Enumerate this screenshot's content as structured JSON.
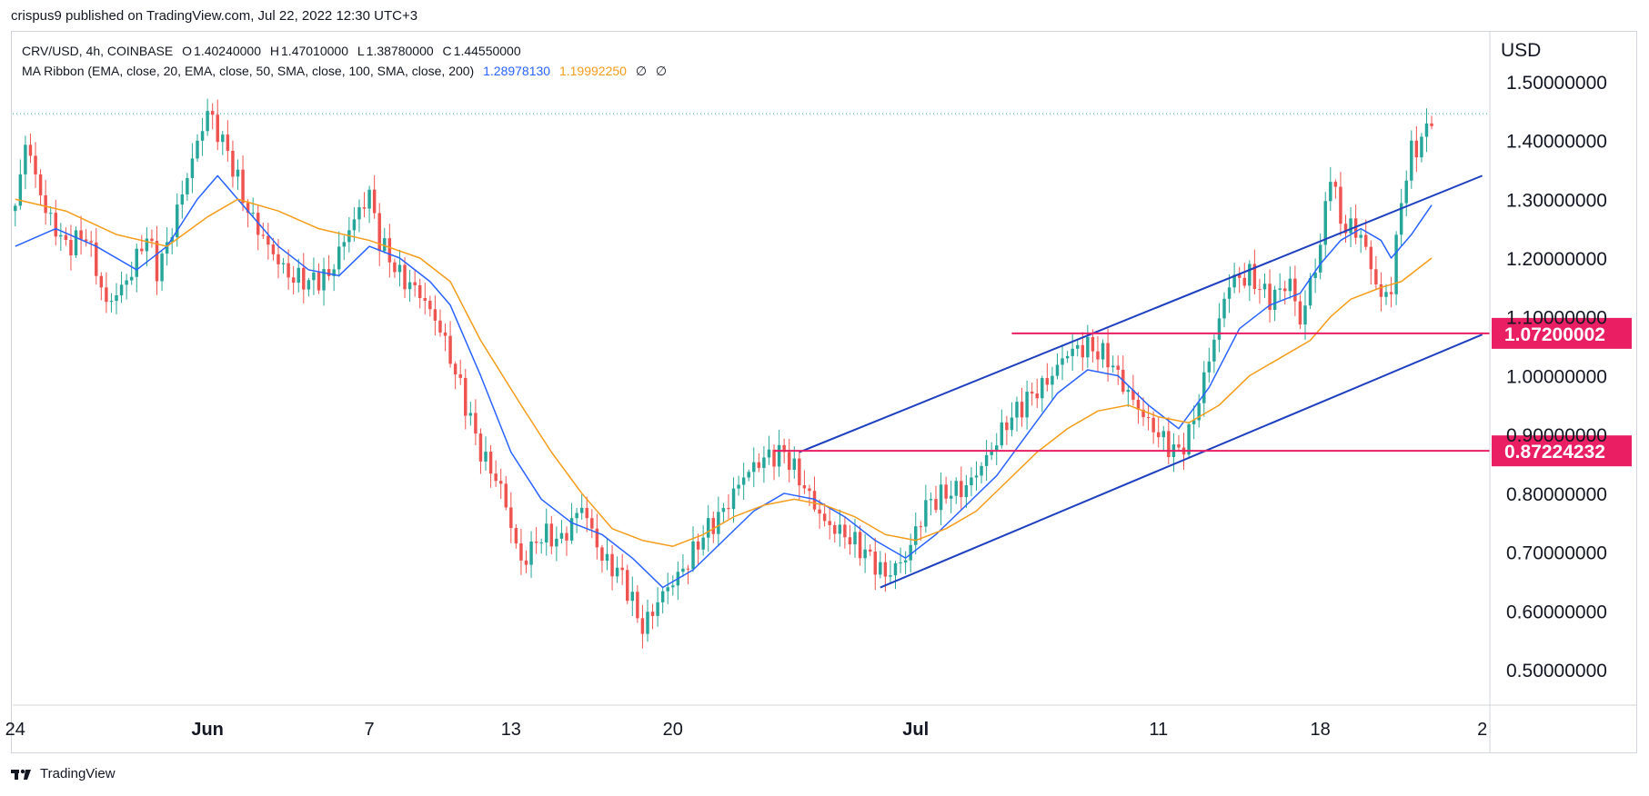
{
  "header": {
    "published_by": "crispus9 published on TradingView.com, Jul 22, 2022 12:30 UTC+3"
  },
  "legend": {
    "row1": {
      "symbol": "CRV/USD, 4h, COINBASE",
      "o_label": "O",
      "o": "1.40240000",
      "h_label": "H",
      "h": "1.47010000",
      "l_label": "L",
      "l": "1.38780000",
      "c_label": "C",
      "c": "1.44550000"
    },
    "row2": {
      "indicator": "MA Ribbon (EMA, close, 20, EMA, close, 50, SMA, close, 100, SMA, close, 200)",
      "ma1": "1.28978130",
      "ma2": "1.19992250",
      "ma3": "∅",
      "ma4": "∅"
    }
  },
  "footer": {
    "brand": "TradingView"
  },
  "chart_data": {
    "type": "candlestick",
    "currency": "USD",
    "y_ticks": [
      "1.50000000",
      "1.40000000",
      "1.30000000",
      "1.20000000",
      "1.10000000",
      "1.00000000",
      "0.90000000",
      "0.80000000",
      "0.70000000",
      "0.60000000",
      "0.50000000"
    ],
    "ylim": [
      0.44,
      1.58
    ],
    "x_ticks": [
      {
        "label": "24",
        "i": 0
      },
      {
        "label": "Jun",
        "i": 38
      },
      {
        "label": "7",
        "i": 70
      },
      {
        "label": "13",
        "i": 98
      },
      {
        "label": "20",
        "i": 130
      },
      {
        "label": "Jul",
        "i": 178
      },
      {
        "label": "11",
        "i": 226
      },
      {
        "label": "18",
        "i": 258
      },
      {
        "label": "2",
        "i": 290
      }
    ],
    "n_slots": 292,
    "candle_anchors": [
      [
        0,
        1.28
      ],
      [
        2,
        1.4
      ],
      [
        6,
        1.28
      ],
      [
        10,
        1.22
      ],
      [
        14,
        1.24
      ],
      [
        16,
        1.18
      ],
      [
        18,
        1.12
      ],
      [
        22,
        1.16
      ],
      [
        26,
        1.24
      ],
      [
        28,
        1.18
      ],
      [
        30,
        1.22
      ],
      [
        34,
        1.34
      ],
      [
        38,
        1.45
      ],
      [
        42,
        1.38
      ],
      [
        46,
        1.28
      ],
      [
        50,
        1.22
      ],
      [
        54,
        1.17
      ],
      [
        58,
        1.16
      ],
      [
        62,
        1.17
      ],
      [
        66,
        1.25
      ],
      [
        70,
        1.31
      ],
      [
        72,
        1.23
      ],
      [
        76,
        1.17
      ],
      [
        80,
        1.14
      ],
      [
        84,
        1.08
      ],
      [
        88,
        0.98
      ],
      [
        92,
        0.87
      ],
      [
        96,
        0.81
      ],
      [
        100,
        0.68
      ],
      [
        104,
        0.73
      ],
      [
        108,
        0.72
      ],
      [
        112,
        0.78
      ],
      [
        116,
        0.69
      ],
      [
        120,
        0.66
      ],
      [
        124,
        0.57
      ],
      [
        128,
        0.63
      ],
      [
        132,
        0.67
      ],
      [
        136,
        0.73
      ],
      [
        140,
        0.77
      ],
      [
        144,
        0.83
      ],
      [
        148,
        0.86
      ],
      [
        152,
        0.87
      ],
      [
        156,
        0.81
      ],
      [
        160,
        0.75
      ],
      [
        164,
        0.73
      ],
      [
        168,
        0.7
      ],
      [
        172,
        0.66
      ],
      [
        176,
        0.69
      ],
      [
        180,
        0.78
      ],
      [
        184,
        0.8
      ],
      [
        188,
        0.81
      ],
      [
        192,
        0.86
      ],
      [
        196,
        0.92
      ],
      [
        200,
        0.96
      ],
      [
        204,
        0.99
      ],
      [
        208,
        1.04
      ],
      [
        212,
        1.05
      ],
      [
        216,
        1.03
      ],
      [
        220,
        0.97
      ],
      [
        224,
        0.92
      ],
      [
        228,
        0.88
      ],
      [
        230,
        0.87
      ],
      [
        232,
        0.9
      ],
      [
        234,
        0.96
      ],
      [
        236,
        1.03
      ],
      [
        240,
        1.16
      ],
      [
        244,
        1.17
      ],
      [
        248,
        1.13
      ],
      [
        252,
        1.16
      ],
      [
        254,
        1.09
      ],
      [
        258,
        1.22
      ],
      [
        260,
        1.35
      ],
      [
        262,
        1.26
      ],
      [
        266,
        1.24
      ],
      [
        270,
        1.13
      ],
      [
        272,
        1.15
      ],
      [
        274,
        1.3
      ],
      [
        276,
        1.38
      ],
      [
        278,
        1.4
      ],
      [
        280,
        1.44
      ]
    ],
    "series": [
      {
        "name": "EMA 20",
        "color": "#2962ff",
        "anchors": [
          [
            0,
            1.22
          ],
          [
            8,
            1.25
          ],
          [
            16,
            1.22
          ],
          [
            24,
            1.18
          ],
          [
            30,
            1.22
          ],
          [
            36,
            1.3
          ],
          [
            40,
            1.34
          ],
          [
            46,
            1.28
          ],
          [
            52,
            1.22
          ],
          [
            58,
            1.18
          ],
          [
            64,
            1.17
          ],
          [
            70,
            1.22
          ],
          [
            76,
            1.2
          ],
          [
            82,
            1.16
          ],
          [
            86,
            1.12
          ],
          [
            92,
            1.0
          ],
          [
            98,
            0.87
          ],
          [
            104,
            0.79
          ],
          [
            110,
            0.75
          ],
          [
            116,
            0.73
          ],
          [
            122,
            0.69
          ],
          [
            128,
            0.64
          ],
          [
            134,
            0.67
          ],
          [
            140,
            0.72
          ],
          [
            146,
            0.77
          ],
          [
            152,
            0.8
          ],
          [
            158,
            0.79
          ],
          [
            164,
            0.76
          ],
          [
            170,
            0.72
          ],
          [
            176,
            0.69
          ],
          [
            182,
            0.73
          ],
          [
            188,
            0.78
          ],
          [
            194,
            0.83
          ],
          [
            200,
            0.9
          ],
          [
            206,
            0.97
          ],
          [
            212,
            1.01
          ],
          [
            218,
            1.0
          ],
          [
            224,
            0.95
          ],
          [
            230,
            0.91
          ],
          [
            236,
            0.98
          ],
          [
            242,
            1.08
          ],
          [
            248,
            1.12
          ],
          [
            254,
            1.14
          ],
          [
            258,
            1.19
          ],
          [
            262,
            1.23
          ],
          [
            266,
            1.25
          ],
          [
            270,
            1.23
          ],
          [
            272,
            1.2
          ],
          [
            276,
            1.24
          ],
          [
            280,
            1.29
          ]
        ]
      },
      {
        "name": "EMA 50",
        "color": "#f59c1a",
        "anchors": [
          [
            0,
            1.3
          ],
          [
            10,
            1.28
          ],
          [
            20,
            1.24
          ],
          [
            30,
            1.22
          ],
          [
            38,
            1.27
          ],
          [
            44,
            1.3
          ],
          [
            52,
            1.28
          ],
          [
            60,
            1.25
          ],
          [
            70,
            1.23
          ],
          [
            80,
            1.2
          ],
          [
            86,
            1.16
          ],
          [
            92,
            1.06
          ],
          [
            100,
            0.95
          ],
          [
            106,
            0.87
          ],
          [
            112,
            0.8
          ],
          [
            118,
            0.74
          ],
          [
            124,
            0.72
          ],
          [
            130,
            0.71
          ],
          [
            136,
            0.73
          ],
          [
            142,
            0.76
          ],
          [
            148,
            0.78
          ],
          [
            154,
            0.79
          ],
          [
            160,
            0.78
          ],
          [
            166,
            0.76
          ],
          [
            172,
            0.73
          ],
          [
            178,
            0.72
          ],
          [
            184,
            0.74
          ],
          [
            190,
            0.77
          ],
          [
            196,
            0.82
          ],
          [
            202,
            0.87
          ],
          [
            208,
            0.91
          ],
          [
            214,
            0.94
          ],
          [
            220,
            0.95
          ],
          [
            226,
            0.93
          ],
          [
            232,
            0.92
          ],
          [
            238,
            0.95
          ],
          [
            244,
            1.0
          ],
          [
            250,
            1.03
          ],
          [
            256,
            1.06
          ],
          [
            260,
            1.1
          ],
          [
            264,
            1.13
          ],
          [
            270,
            1.15
          ],
          [
            274,
            1.16
          ],
          [
            280,
            1.2
          ]
        ]
      }
    ],
    "trend_lines": [
      {
        "name": "channel-upper",
        "from": [
          155,
          0.87
        ],
        "to": [
          290,
          1.34
        ]
      },
      {
        "name": "channel-lower",
        "from": [
          171,
          0.64
        ],
        "to": [
          290,
          1.07
        ]
      }
    ],
    "levels": [
      {
        "name": "resistance",
        "from_i": 197,
        "value": 1.07200002,
        "label": "1.07200002"
      },
      {
        "name": "support",
        "from_i": 150,
        "value": 0.87224232,
        "label": "0.87224232"
      }
    ],
    "last_price": 1.4455
  }
}
